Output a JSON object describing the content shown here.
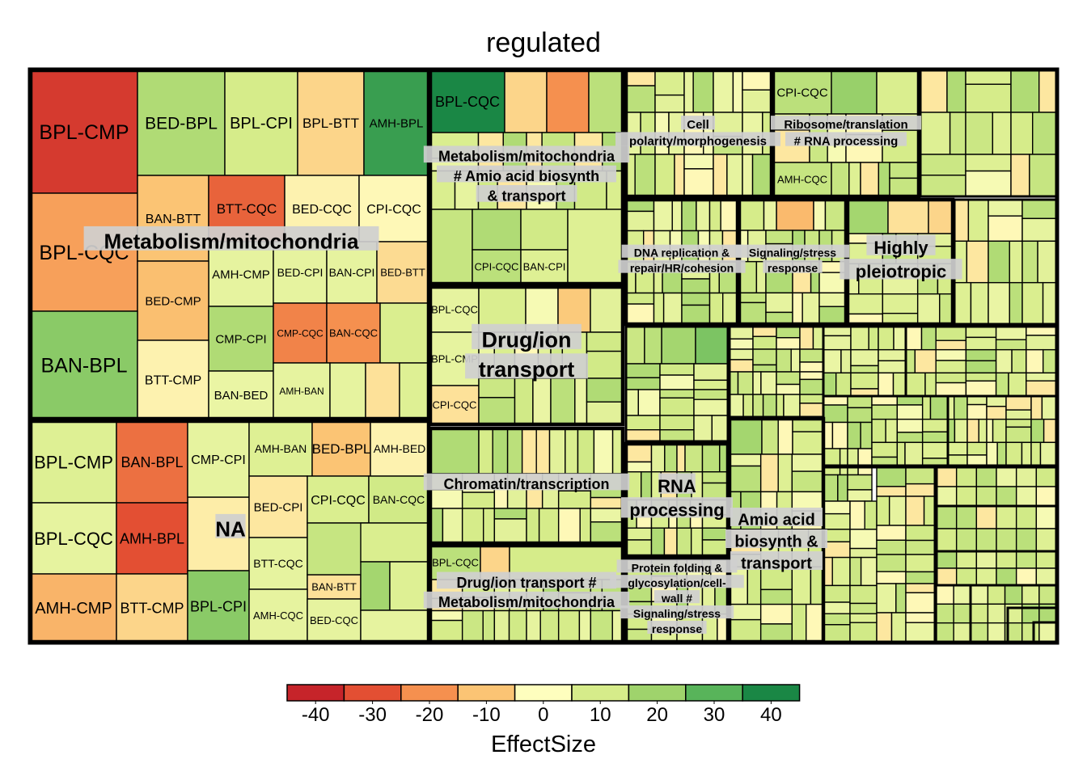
{
  "chart_data": {
    "type": "treemap",
    "title": "regulated",
    "colorbar": {
      "title": "EffectSize",
      "ticks": [
        "-40",
        "-30",
        "-20",
        "-10",
        "0",
        "10",
        "20",
        "30",
        "40"
      ],
      "colors": [
        "#c6242a",
        "#e34f33",
        "#f5904f",
        "#fbc474",
        "#fefebe",
        "#d6ec8a",
        "#9fd36c",
        "#58b45a",
        "#1a8745"
      ]
    },
    "groups": [
      {
        "name": "Metabolism/mitochondria",
        "cells": [
          {
            "label": "BPL-CMP",
            "effect": -40
          },
          {
            "label": "BED-BPL",
            "effect": 12
          },
          {
            "label": "BPL-CPI",
            "effect": 5
          },
          {
            "label": "BPL-BTT",
            "effect": -12
          },
          {
            "label": "AMH-BPL",
            "effect": 30
          },
          {
            "label": "BPL-CQC",
            "effect": -22
          },
          {
            "label": "BAN-BTT",
            "effect": -15
          },
          {
            "label": "BTT-CQC",
            "effect": -32
          },
          {
            "label": "BED-CQC",
            "effect": -7
          },
          {
            "label": "CPI-CQC",
            "effect": -6
          },
          {
            "label": "AMH-CMP",
            "effect": 1
          },
          {
            "label": "BED-CPI",
            "effect": 1
          },
          {
            "label": "BAN-CPI",
            "effect": 1
          },
          {
            "label": "BED-BTT",
            "effect": -11
          },
          {
            "label": "BED-CMP",
            "effect": -16
          },
          {
            "label": "CMP-CPI",
            "effect": 12
          },
          {
            "label": "CMP-CQC",
            "effect": -27
          },
          {
            "label": "BAN-CQC",
            "effect": -25
          },
          {
            "label": "BAN-BPL",
            "effect": 18
          },
          {
            "label": "BTT-CMP",
            "effect": -7
          },
          {
            "label": "BAN-BED",
            "effect": 0
          },
          {
            "label": "AMH-BAN",
            "effect": 1
          }
        ]
      },
      {
        "name": "NA",
        "cells": [
          {
            "label": "BPL-CMP",
            "effect": 3
          },
          {
            "label": "BAN-BPL",
            "effect": -30
          },
          {
            "label": "CMP-CPI",
            "effect": 1
          },
          {
            "label": "AMH-BAN",
            "effect": 3
          },
          {
            "label": "BED-BPL",
            "effect": -15
          },
          {
            "label": "AMH-BED",
            "effect": -7
          },
          {
            "label": "BPL-CQC",
            "effect": 1
          },
          {
            "label": "AMH-BPL",
            "effect": -35
          },
          {
            "label": "BED-CPI",
            "effect": -9
          },
          {
            "label": "CPI-CQC",
            "effect": 4
          },
          {
            "label": "BAN-CQC",
            "effect": 6
          },
          {
            "label": "BTT-CQC",
            "effect": 1
          },
          {
            "label": "BAN-BTT",
            "effect": -10
          },
          {
            "label": "AMH-CMP",
            "effect": -18
          },
          {
            "label": "BTT-CMP",
            "effect": -12
          },
          {
            "label": "BPL-CPI",
            "effect": 18
          },
          {
            "label": "AMH-CQC",
            "effect": 1
          },
          {
            "label": "BED-CQC",
            "effect": 1
          }
        ]
      },
      {
        "name": "Metabolism/mitochondria # Amio acid biosynth & transport",
        "cells": [
          {
            "label": "BPL-CQC",
            "effect": 42
          },
          {
            "label": "CPI-CQC",
            "effect": 10
          },
          {
            "label": "BAN-CPI",
            "effect": 3
          }
        ]
      },
      {
        "name": "Drug/ion transport",
        "cells": [
          {
            "label": "BPL-CQC",
            "effect": 1
          },
          {
            "label": "BPL-CMP",
            "effect": 1
          },
          {
            "label": "CPI-CQC",
            "effect": -10
          }
        ]
      },
      {
        "name": "Chromatin/transcription",
        "cells": []
      },
      {
        "name": "Drug/ion transport # Metabolism/mitochondria",
        "cells": [
          {
            "label": "BPL-CQC",
            "effect": 10
          }
        ]
      },
      {
        "name": "Cell polarity/morphogenesis",
        "cells": []
      },
      {
        "name": "Ribosome/translation # RNA processing",
        "cells": [
          {
            "label": "CPI-CQC",
            "effect": 10
          },
          {
            "label": "AMH-CQC",
            "effect": 8
          }
        ]
      },
      {
        "name": "DNA replication & repair/HR/cohesion",
        "cells": []
      },
      {
        "name": "Signaling/stress response",
        "cells": []
      },
      {
        "name": "Highly pleiotropic",
        "cells": []
      },
      {
        "name": "RNA processing",
        "cells": []
      },
      {
        "name": "Amio acid biosynth & transport",
        "cells": []
      },
      {
        "name": "Protein folding & glycosylation/cell wall # Signaling/stress response",
        "cells": []
      }
    ]
  }
}
